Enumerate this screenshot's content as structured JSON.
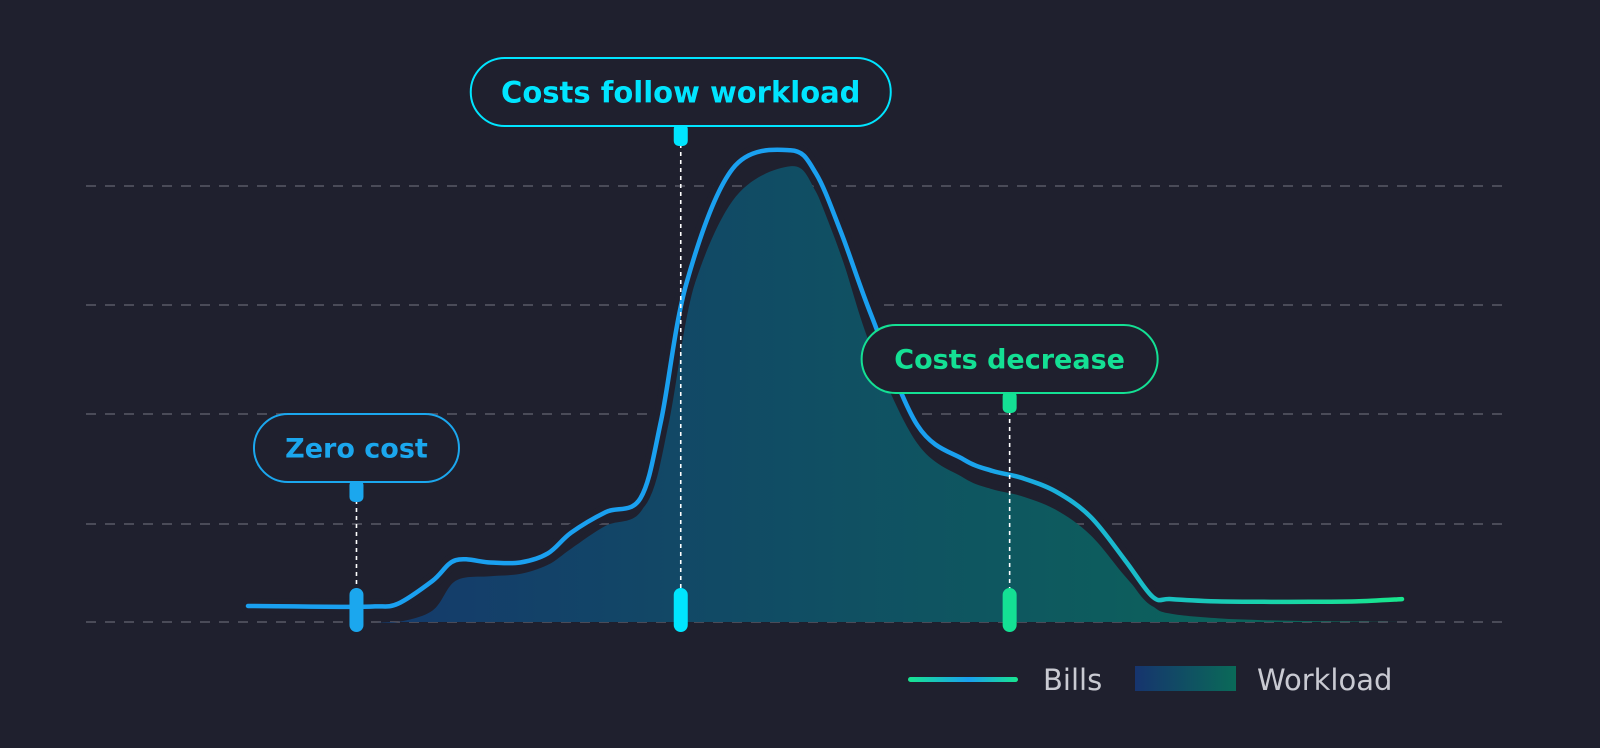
{
  "colors": {
    "background": "#1f202e",
    "grid": "#4a4b58",
    "bills_start": "#1aa0f0",
    "bills_end": "#18e58f",
    "workload_start": "#16346e",
    "workload_end": "#0a6a58",
    "zero_cost": "#1ba7ee",
    "follow": "#00e5ff",
    "decrease": "#14e094"
  },
  "annotations": {
    "zero_cost": "Zero cost",
    "follow": "Costs follow workload",
    "decrease": "Costs decrease"
  },
  "legend": {
    "bills": "Bills",
    "workload": "Workload",
    "position": "bottom-right"
  },
  "chart_data": {
    "type": "area",
    "title": "",
    "xlabel": "",
    "ylabel": "",
    "grid": true,
    "x": [
      0,
      4,
      8,
      11,
      13,
      16,
      18,
      21,
      23.6,
      26,
      28,
      31,
      34,
      35.8,
      38,
      42,
      47,
      49.2,
      51.4,
      54,
      58,
      62,
      64.5,
      67,
      70,
      73,
      76,
      78.4,
      80,
      84,
      88,
      92,
      96,
      100
    ],
    "series": [
      {
        "name": "Bills",
        "values": [
          3.5,
          3.4,
          3.3,
          3.4,
          4.0,
          9.0,
          13.5,
          13.0,
          13.0,
          15.0,
          19.5,
          24.0,
          27.0,
          44.0,
          74.0,
          99.0,
          103.0,
          98.0,
          85.0,
          67.0,
          43.0,
          35.5,
          33.0,
          31.5,
          28.5,
          23.0,
          13.5,
          5.5,
          5.0,
          4.5,
          4.4,
          4.4,
          4.5,
          5.0
        ]
      },
      {
        "name": "Workload",
        "values": [
          0,
          0,
          0,
          0,
          0,
          2.5,
          9.0,
          10.0,
          10.5,
          12.5,
          16.0,
          21.0,
          24.0,
          37.0,
          68.0,
          92.0,
          99.5,
          94.0,
          80.0,
          60.0,
          39.0,
          31.5,
          29.0,
          27.5,
          24.5,
          19.0,
          10.0,
          3.5,
          1.8,
          0.8,
          0.4,
          0.2,
          0.1,
          0
        ]
      }
    ],
    "ylim": [
      0,
      110
    ],
    "annotation_points": [
      {
        "label_key": "zero_cost",
        "x": 9.4
      },
      {
        "label_key": "follow",
        "x": 37.5
      },
      {
        "label_key": "decrease",
        "x": 66.0
      }
    ]
  }
}
